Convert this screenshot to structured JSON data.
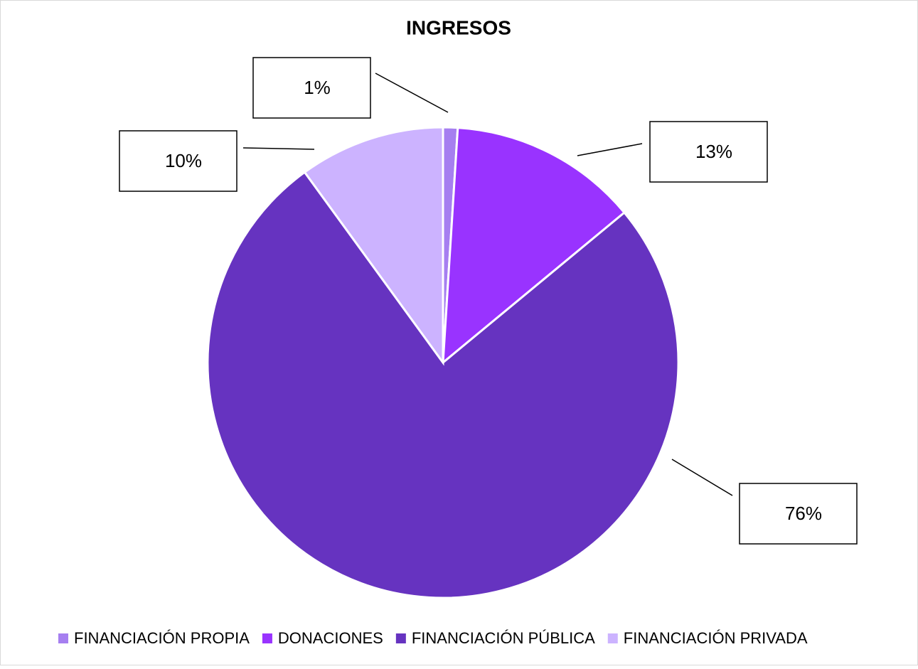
{
  "chart_data": {
    "type": "pie",
    "title": "INGRESOS",
    "categories": [
      "FINANCIACIÓN PROPIA",
      "DONACIONES",
      "FINANCIACIÓN PÚBLICA",
      "FINANCIACIÓN PRIVADA"
    ],
    "values": [
      1,
      13,
      76,
      10
    ],
    "value_labels": [
      "1%",
      "13%",
      "76%",
      "10%"
    ],
    "colors": [
      "#a67ff0",
      "#9933ff",
      "#6633c0",
      "#ccb3ff"
    ],
    "legend": "bottom"
  }
}
